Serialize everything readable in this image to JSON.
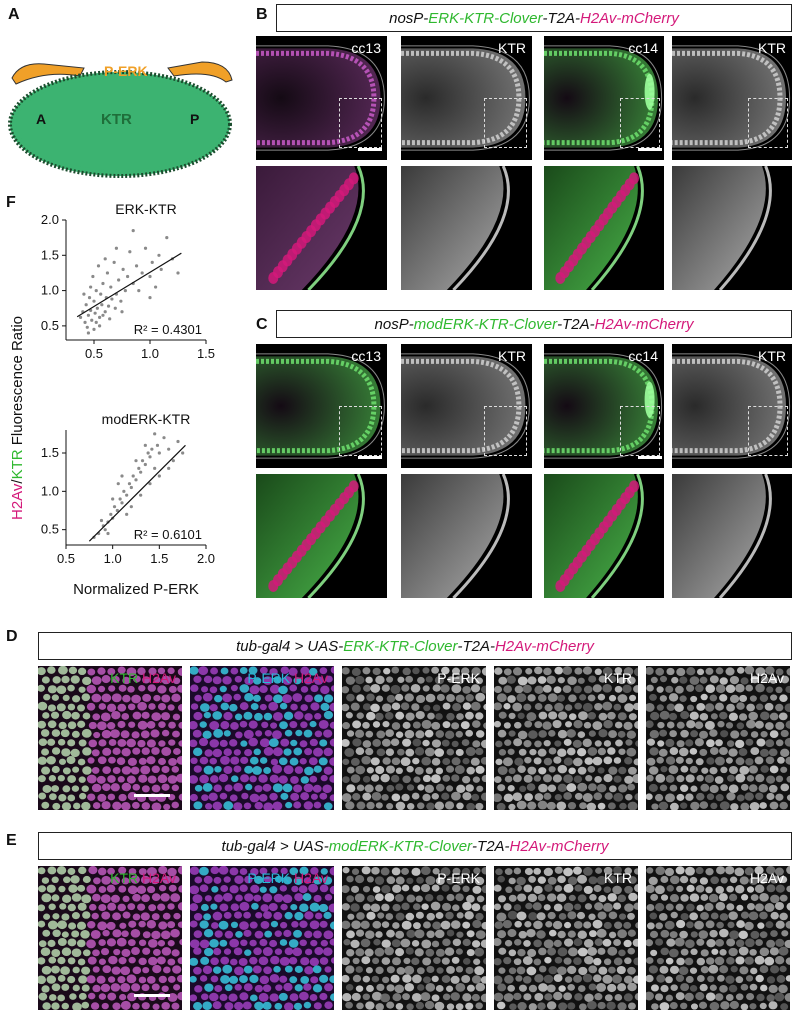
{
  "panels": {
    "A": {
      "letter": "A",
      "perk": "P-ERK",
      "ktr": "KTR",
      "a": "A",
      "p": "P"
    },
    "B": {
      "letter": "B",
      "header": [
        {
          "t": "nosP-",
          "c": ""
        },
        {
          "t": "ERK-KTR-Clover",
          "c": "green"
        },
        {
          "t": "-T2A-",
          "c": ""
        },
        {
          "t": "H2Av-mCherry",
          "c": "mag"
        }
      ],
      "labels": [
        "cc13",
        "KTR",
        "cc14",
        "KTR"
      ]
    },
    "C": {
      "letter": "C",
      "header": [
        {
          "t": "nosP-",
          "c": ""
        },
        {
          "t": "modERK-KTR-Clover",
          "c": "green"
        },
        {
          "t": "-T2A-",
          "c": ""
        },
        {
          "t": "H2Av-mCherry",
          "c": "mag"
        }
      ],
      "labels": [
        "cc13",
        "KTR",
        "cc14",
        "KTR"
      ]
    },
    "D": {
      "letter": "D",
      "header": [
        {
          "t": "tub-gal4 > UAS-",
          "c": ""
        },
        {
          "t": "ERK-KTR-Clover",
          "c": "green"
        },
        {
          "t": "-T2A-",
          "c": ""
        },
        {
          "t": "H2Av-mCherry",
          "c": "mag"
        }
      ],
      "labels": [
        [
          {
            "t": "KTR",
            "c": "green"
          },
          {
            "t": " ",
            "c": ""
          },
          {
            "t": "H2Av",
            "c": "mag"
          }
        ],
        [
          {
            "t": "P-ERK",
            "c": "cyan"
          },
          {
            "t": " ",
            "c": ""
          },
          {
            "t": "H2Av",
            "c": "mag"
          }
        ],
        [
          {
            "t": "P-ERK",
            "c": ""
          }
        ],
        [
          {
            "t": "KTR",
            "c": ""
          }
        ],
        [
          {
            "t": "H2Av",
            "c": ""
          }
        ]
      ]
    },
    "E": {
      "letter": "E",
      "header": [
        {
          "t": "tub-gal4 > UAS-",
          "c": ""
        },
        {
          "t": "modERK-KTR-Clover",
          "c": "green"
        },
        {
          "t": "-T2A-",
          "c": ""
        },
        {
          "t": "H2Av-mCherry",
          "c": "mag"
        }
      ],
      "labels": [
        [
          {
            "t": "KTR",
            "c": "green"
          },
          {
            "t": " ",
            "c": ""
          },
          {
            "t": "H2Av",
            "c": "mag"
          }
        ],
        [
          {
            "t": "P-ERK",
            "c": "cyan"
          },
          {
            "t": " ",
            "c": ""
          },
          {
            "t": "H2Av",
            "c": "mag"
          }
        ],
        [
          {
            "t": "P-ERK",
            "c": ""
          }
        ],
        [
          {
            "t": "KTR",
            "c": ""
          }
        ],
        [
          {
            "t": "H2Av",
            "c": ""
          }
        ]
      ]
    },
    "F": {
      "letter": "F"
    }
  },
  "colors": {
    "green": "#2fb82f",
    "mag": "#d4197a",
    "cyan": "#26b8d8",
    "orange": "#f0a028",
    "embryo": "#3cb371",
    "ktr_text": "#1f6e3a"
  },
  "chart_data": [
    {
      "type": "scatter",
      "title": "ERK-KTR",
      "xlim": [
        0.25,
        1.5
      ],
      "ylim": [
        0.3,
        2.0
      ],
      "xticks": [
        "0.5",
        "1.0",
        "1.5"
      ],
      "yticks": [
        "0.5",
        "1.0",
        "1.5",
        "2.0"
      ],
      "fit": {
        "x": [
          0.35,
          1.28
        ],
        "y": [
          0.63,
          1.53
        ]
      },
      "r2": "R² = 0.4301",
      "points": [
        [
          0.38,
          0.62
        ],
        [
          0.4,
          0.7
        ],
        [
          0.42,
          0.55
        ],
        [
          0.43,
          0.8
        ],
        [
          0.44,
          0.48
        ],
        [
          0.45,
          0.65
        ],
        [
          0.46,
          0.9
        ],
        [
          0.47,
          0.72
        ],
        [
          0.48,
          0.58
        ],
        [
          0.49,
          1.2
        ],
        [
          0.5,
          0.85
        ],
        [
          0.51,
          0.68
        ],
        [
          0.52,
          1.0
        ],
        [
          0.53,
          0.75
        ],
        [
          0.54,
          1.35
        ],
        [
          0.55,
          0.62
        ],
        [
          0.56,
          0.95
        ],
        [
          0.57,
          0.8
        ],
        [
          0.58,
          1.1
        ],
        [
          0.6,
          0.7
        ],
        [
          0.61,
          0.9
        ],
        [
          0.62,
          1.25
        ],
        [
          0.63,
          0.78
        ],
        [
          0.65,
          1.05
        ],
        [
          0.66,
          0.88
        ],
        [
          0.68,
          1.4
        ],
        [
          0.7,
          0.95
        ],
        [
          0.72,
          1.15
        ],
        [
          0.74,
          0.85
        ],
        [
          0.76,
          1.3
        ],
        [
          0.78,
          1.0
        ],
        [
          0.8,
          1.2
        ],
        [
          0.82,
          1.55
        ],
        [
          0.85,
          1.1
        ],
        [
          0.88,
          1.35
        ],
        [
          0.9,
          1.0
        ],
        [
          0.93,
          1.25
        ],
        [
          0.96,
          1.6
        ],
        [
          1.0,
          1.2
        ],
        [
          1.02,
          1.4
        ],
        [
          1.05,
          1.05
        ],
        [
          1.08,
          1.5
        ],
        [
          1.1,
          1.3
        ],
        [
          1.15,
          1.75
        ],
        [
          1.2,
          1.45
        ],
        [
          1.25,
          1.25
        ],
        [
          0.45,
          0.4
        ],
        [
          0.5,
          0.45
        ],
        [
          0.55,
          0.5
        ],
        [
          0.6,
          1.45
        ],
        [
          0.7,
          1.6
        ],
        [
          0.85,
          1.85
        ],
        [
          1.0,
          0.9
        ],
        [
          0.47,
          1.05
        ],
        [
          0.52,
          0.55
        ],
        [
          0.58,
          0.65
        ],
        [
          0.41,
          0.95
        ],
        [
          0.64,
          0.6
        ],
        [
          0.69,
          0.75
        ],
        [
          0.75,
          0.7
        ]
      ]
    },
    {
      "type": "scatter",
      "title": "modERK-KTR",
      "xlim": [
        0.5,
        2.0
      ],
      "ylim": [
        0.3,
        1.8
      ],
      "xticks": [
        "0.5",
        "1.0",
        "1.5",
        "2.0"
      ],
      "yticks": [
        "0.5",
        "1.0",
        "1.5"
      ],
      "fit": {
        "x": [
          0.75,
          1.78
        ],
        "y": [
          0.35,
          1.6
        ]
      },
      "r2": "R² = 0.6101",
      "points": [
        [
          0.8,
          0.4
        ],
        [
          0.85,
          0.45
        ],
        [
          0.9,
          0.55
        ],
        [
          0.92,
          0.5
        ],
        [
          0.95,
          0.6
        ],
        [
          0.98,
          0.7
        ],
        [
          1.0,
          0.65
        ],
        [
          1.02,
          0.8
        ],
        [
          1.05,
          0.75
        ],
        [
          1.08,
          0.9
        ],
        [
          1.1,
          0.85
        ],
        [
          1.12,
          1.0
        ],
        [
          1.15,
          0.95
        ],
        [
          1.18,
          1.1
        ],
        [
          1.2,
          1.05
        ],
        [
          1.22,
          1.2
        ],
        [
          1.25,
          1.15
        ],
        [
          1.28,
          1.3
        ],
        [
          1.3,
          1.25
        ],
        [
          1.32,
          1.4
        ],
        [
          1.35,
          1.35
        ],
        [
          1.38,
          1.5
        ],
        [
          1.4,
          1.45
        ],
        [
          1.42,
          1.55
        ],
        [
          1.45,
          1.3
        ],
        [
          1.48,
          1.6
        ],
        [
          1.5,
          1.5
        ],
        [
          1.55,
          1.7
        ],
        [
          1.6,
          1.55
        ],
        [
          1.65,
          1.4
        ],
        [
          1.7,
          1.65
        ],
        [
          1.75,
          1.5
        ],
        [
          1.2,
          0.8
        ],
        [
          1.3,
          0.95
        ],
        [
          1.0,
          0.9
        ],
        [
          1.1,
          1.2
        ],
        [
          1.4,
          1.1
        ],
        [
          0.88,
          0.62
        ],
        [
          1.06,
          1.1
        ],
        [
          1.25,
          1.4
        ],
        [
          1.35,
          1.6
        ],
        [
          1.45,
          1.75
        ],
        [
          1.15,
          0.7
        ],
        [
          1.5,
          1.2
        ],
        [
          1.6,
          1.3
        ],
        [
          0.95,
          0.45
        ]
      ]
    }
  ],
  "f_axes": {
    "ylabel_parts": [
      {
        "t": "H2Av",
        "c": "mag"
      },
      {
        "t": "/",
        "c": ""
      },
      {
        "t": "KTR",
        "c": "green"
      },
      {
        "t": " Fluorescence Ratio",
        "c": ""
      }
    ],
    "xlabel": "Normalized P-ERK"
  }
}
